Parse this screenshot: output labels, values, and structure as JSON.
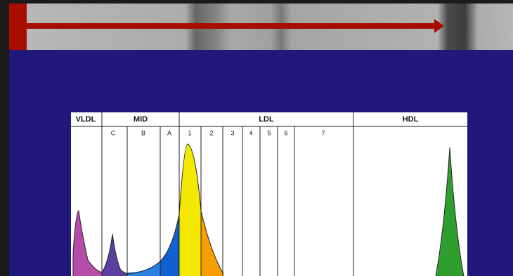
{
  "header": {
    "groups": [
      "VLDL",
      "MID",
      "LDL",
      "HDL"
    ]
  },
  "subfractions": {
    "mid": [
      "C",
      "B",
      "A"
    ],
    "ldl": [
      "1",
      "2",
      "3",
      "4",
      "5",
      "6",
      "7"
    ]
  }
}
